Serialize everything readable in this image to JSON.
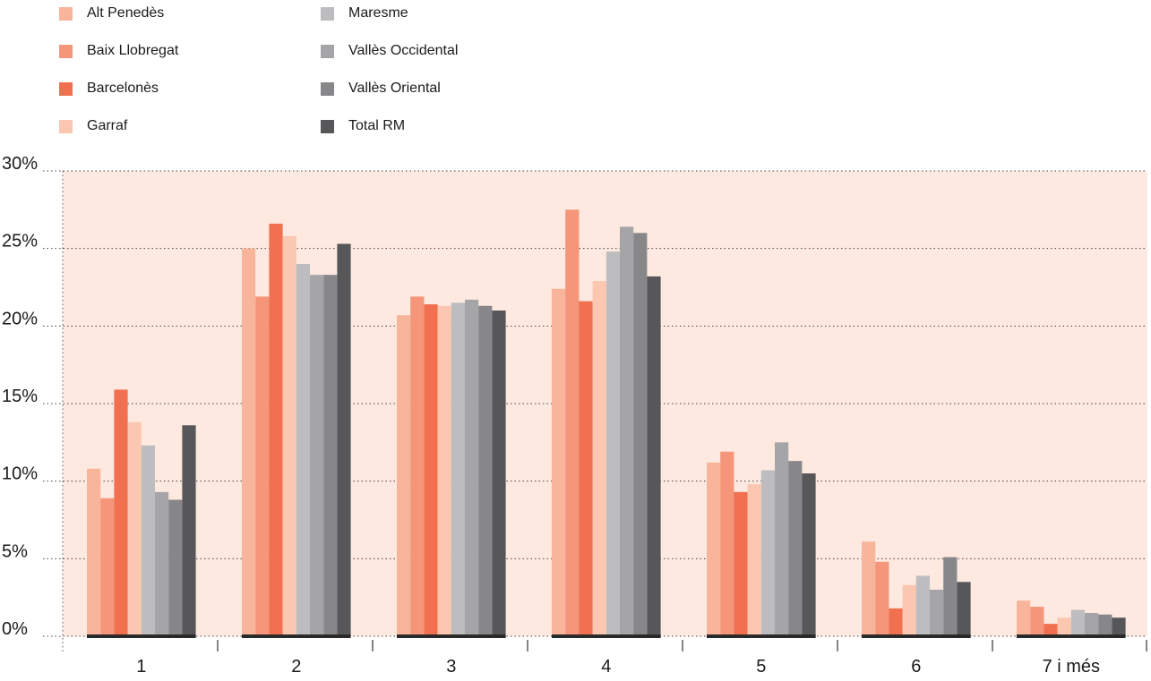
{
  "chart_data": {
    "type": "bar",
    "categories": [
      "1",
      "2",
      "3",
      "4",
      "5",
      "6",
      "7 i més"
    ],
    "series": [
      {
        "name": "Alt Penedès",
        "color": "#f8b59b",
        "values": [
          10.8,
          25.0,
          20.7,
          22.4,
          11.2,
          6.1,
          2.3
        ]
      },
      {
        "name": "Baix Llobregat",
        "color": "#f5957a",
        "values": [
          8.9,
          21.9,
          21.9,
          27.5,
          11.9,
          4.8,
          1.9
        ]
      },
      {
        "name": "Barcelonès",
        "color": "#f07050",
        "values": [
          15.9,
          26.6,
          21.4,
          21.6,
          9.3,
          1.8,
          0.8
        ]
      },
      {
        "name": "Garraf",
        "color": "#fbc7b1",
        "values": [
          13.8,
          25.8,
          21.3,
          22.9,
          9.8,
          3.3,
          1.2
        ]
      },
      {
        "name": "Maresme",
        "color": "#bdbdbf",
        "values": [
          12.3,
          24.0,
          21.5,
          24.8,
          10.7,
          3.9,
          1.7
        ]
      },
      {
        "name": "Vallès Occidental",
        "color": "#a5a5a8",
        "values": [
          9.3,
          23.3,
          21.7,
          26.4,
          12.5,
          3.0,
          1.5
        ]
      },
      {
        "name": "Vallès Oriental",
        "color": "#87878a",
        "values": [
          8.8,
          23.3,
          21.3,
          26.0,
          11.3,
          5.1,
          1.4
        ]
      },
      {
        "name": "Total RM",
        "color": "#57575a",
        "values": [
          13.6,
          25.3,
          21.0,
          23.2,
          10.5,
          3.5,
          1.2
        ]
      }
    ],
    "y_ticks": [
      "0%",
      "5%",
      "10%",
      "15%",
      "20%",
      "25%",
      "30%"
    ],
    "ylim": [
      0,
      30
    ],
    "y_unit": "%",
    "grid": true,
    "grid_style": "dotted",
    "legend_position": "top-left",
    "plot_background": "#fde9df"
  }
}
